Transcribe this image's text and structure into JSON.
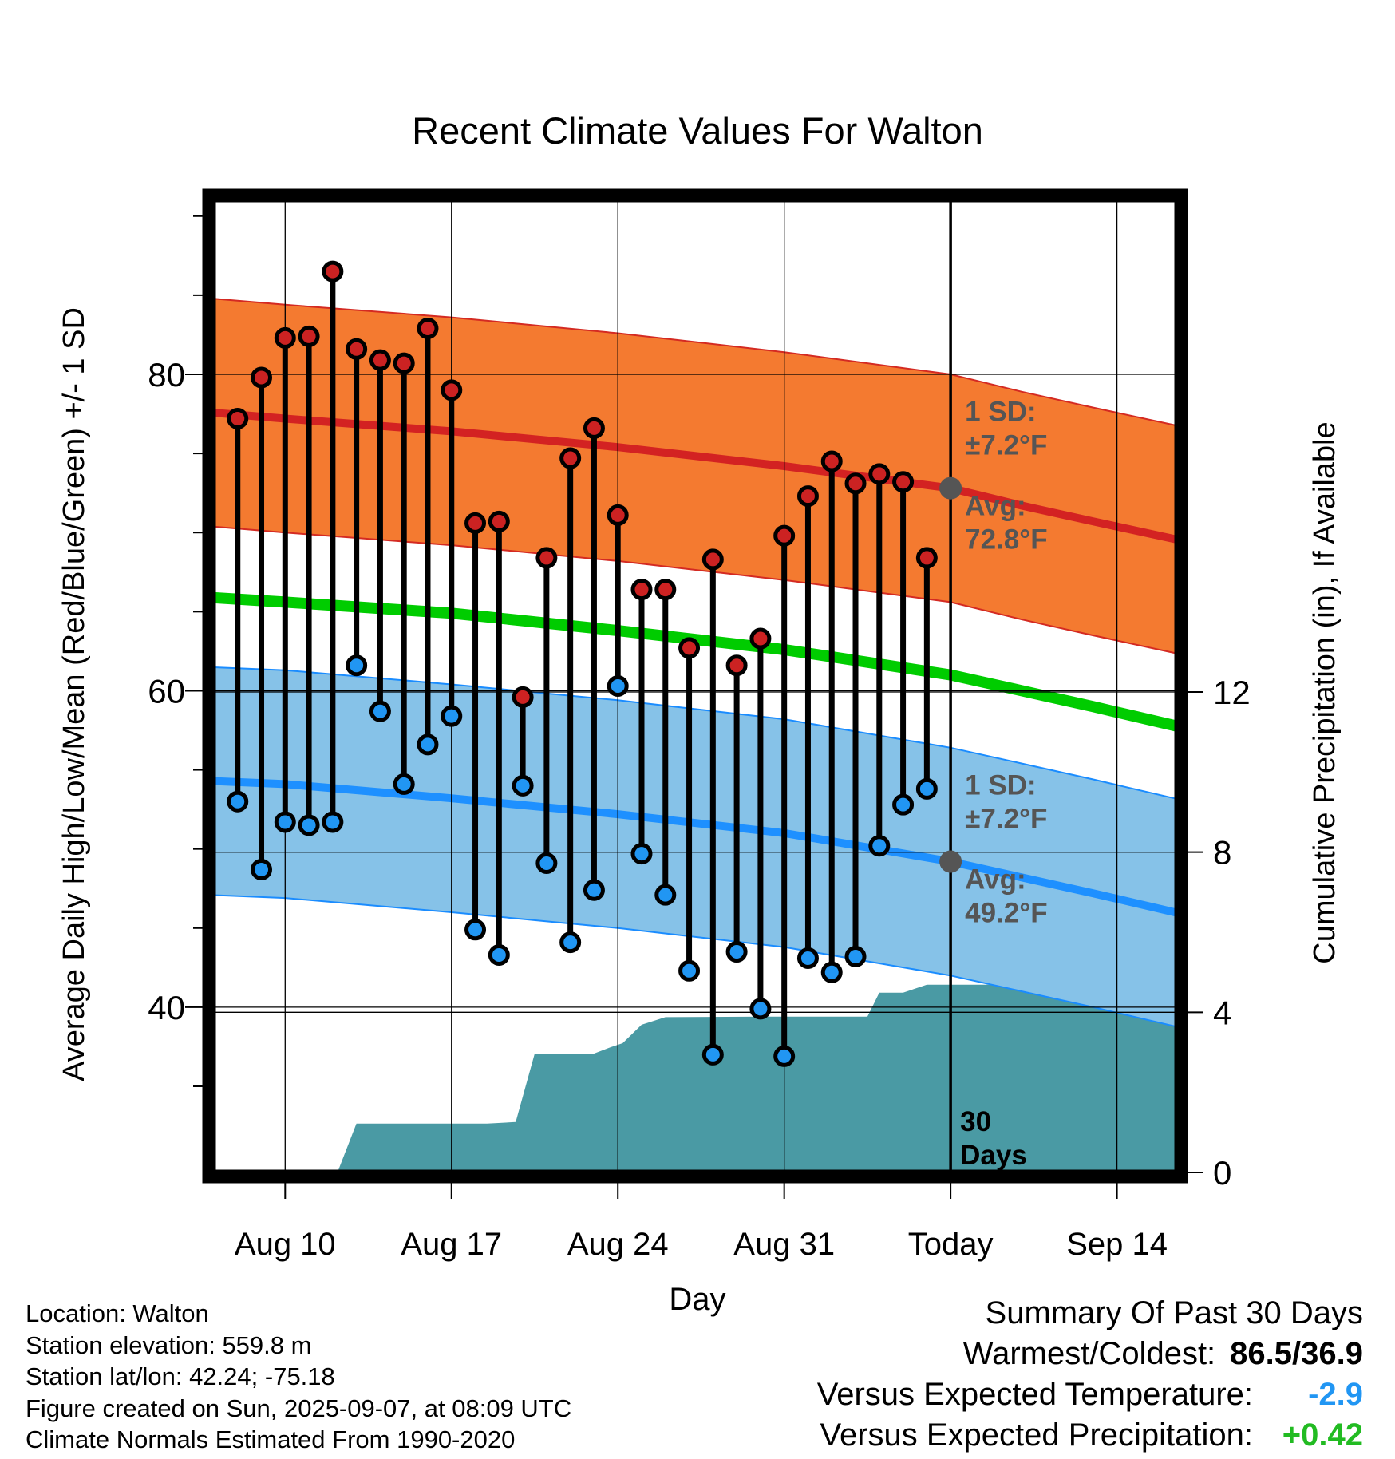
{
  "colors": {
    "high_band": "#f47a30",
    "high_band_edge": "#d42a22",
    "high_avg": "#d32222",
    "low_band": "#86c2e8",
    "low_band_edge": "#1a8cff",
    "low_avg": "#1e90ff",
    "mean_line": "#00cc00",
    "precip_fill": "#4a9aa4",
    "high_dot": "#cc2222",
    "low_dot": "#2196f3",
    "marker": "#555555",
    "annotation": "#555555",
    "temp_delta": "#2196f3",
    "precip_delta": "#22bb22"
  },
  "chart_data": {
    "type": "line",
    "title": "Recent Climate Values For Walton",
    "xlabel": "Day",
    "ylabel": "Average Daily High/Low/Mean (Red/Blue/Green) +/- 1 SD",
    "y2label": "Cumulative Precipitation (in), If Available",
    "x_tick_labels": [
      "Aug 10",
      "Aug 17",
      "Aug 24",
      "Aug 31",
      "Today",
      "Sep 14"
    ],
    "x_tick_days": [
      10,
      17,
      24,
      31,
      38,
      45
    ],
    "xlim": [
      6.8,
      47.7
    ],
    "ylim": [
      29.3,
      91.3
    ],
    "y_ticks": [
      40,
      60,
      80
    ],
    "y2lim": [
      -0.1,
      24.4
    ],
    "y2_ticks": [
      0,
      4,
      8,
      12
    ],
    "grid": true,
    "normals_x": [
      6.8,
      10,
      17,
      24,
      31,
      38,
      41,
      44,
      47.7
    ],
    "normal_high": [
      77.6,
      77.2,
      76.4,
      75.4,
      74.2,
      72.8,
      71.7,
      70.7,
      69.5
    ],
    "normal_low": [
      54.3,
      54.1,
      53.2,
      52.2,
      51.0,
      49.2,
      48.2,
      47.2,
      45.9
    ],
    "normal_mean": [
      65.9,
      65.6,
      64.9,
      63.8,
      62.6,
      61.0,
      60.0,
      59.0,
      57.7
    ],
    "sd_high": 7.2,
    "sd_low": 7.2,
    "obs_days": [
      8,
      9,
      10,
      11,
      12,
      13,
      14,
      15,
      16,
      17,
      18,
      19,
      20,
      21,
      22,
      23,
      24,
      25,
      26,
      27,
      28,
      29,
      30,
      31,
      32,
      33,
      34,
      35,
      36,
      37
    ],
    "obs_high": [
      77.2,
      79.8,
      82.3,
      82.4,
      86.5,
      81.6,
      80.9,
      80.7,
      82.9,
      79.0,
      70.6,
      70.7,
      59.6,
      68.4,
      74.7,
      76.6,
      71.1,
      66.4,
      66.4,
      62.7,
      68.3,
      61.6,
      63.3,
      69.8,
      72.3,
      74.5,
      73.1,
      73.7,
      73.2,
      68.4
    ],
    "obs_low": [
      53.0,
      48.7,
      51.7,
      51.5,
      51.7,
      61.6,
      58.7,
      54.1,
      56.6,
      58.4,
      44.9,
      43.3,
      54.0,
      49.1,
      44.1,
      47.4,
      60.3,
      49.7,
      47.1,
      42.3,
      37.0,
      43.5,
      39.9,
      36.9,
      43.1,
      42.2,
      43.2,
      50.2,
      52.8,
      53.8
    ],
    "precip_x": [
      8.0,
      10.2,
      12.2,
      13.0,
      16.8,
      18.5,
      19.7,
      20.5,
      21.0,
      23.0,
      23.7,
      24.2,
      25.0,
      26.0,
      30.0,
      33.0,
      34.5,
      35.0,
      36.0,
      37.0,
      38.0,
      47.7
    ],
    "precip_cum": [
      0,
      0,
      0,
      1.22,
      1.22,
      1.22,
      1.26,
      2.97,
      2.97,
      2.97,
      3.13,
      3.23,
      3.69,
      3.88,
      3.89,
      3.89,
      3.89,
      4.49,
      4.49,
      4.69,
      4.69,
      4.69
    ],
    "today_day": 38,
    "today_high_avg": 72.8,
    "today_low_avg": 49.2,
    "annotations": {
      "high_sd_label": "1 SD:",
      "high_sd_value": "±7.2°F",
      "high_avg_label": "Avg:",
      "high_avg_value": "72.8°F",
      "low_sd_label": "1 SD:",
      "low_sd_value": "±7.2°F",
      "low_avg_label": "Avg:",
      "low_avg_value": "49.2°F",
      "days_number": "30",
      "days_word": "Days"
    }
  },
  "footer": {
    "location": "Location: Walton",
    "elevation": "Station elevation: 559.8 m",
    "latlon": "Station lat/lon: 42.24; -75.18",
    "created": "Figure created on Sun, 2025-09-07, at 08:09 UTC",
    "normals": "Climate Normals Estimated From 1990-2020"
  },
  "summary": {
    "title": "Summary Of Past 30 Days",
    "warm_cold_label": "Warmest/Coldest:",
    "warm_cold_value": "86.5/36.9",
    "temp_label": "Versus Expected Temperature:",
    "temp_value": "-2.9",
    "precip_label": "Versus Expected Precipitation:",
    "precip_value": "+0.42"
  }
}
